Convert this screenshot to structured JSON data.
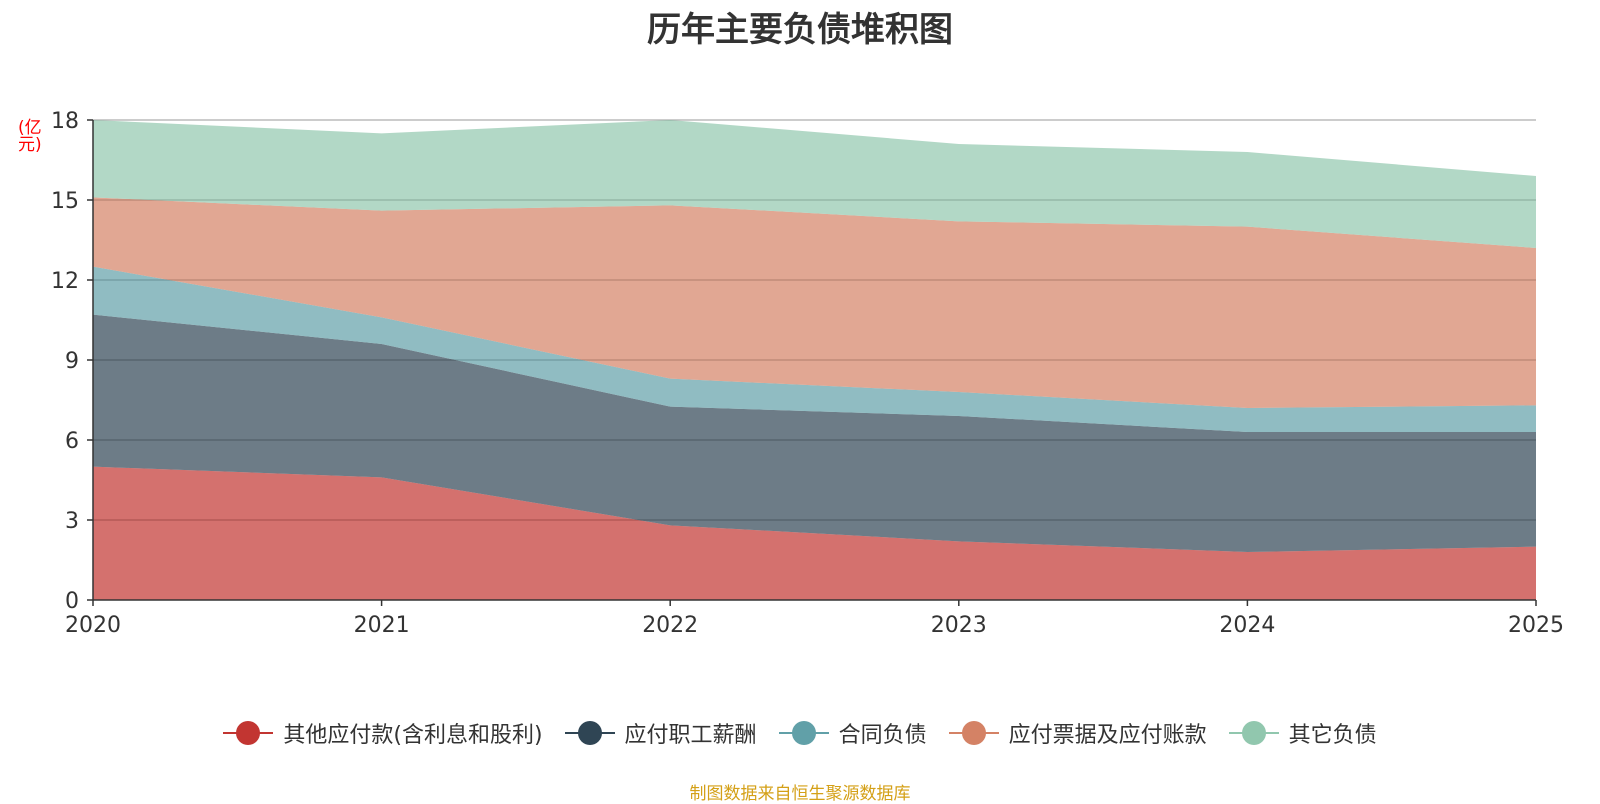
{
  "chart_data": {
    "type": "area",
    "stacked": true,
    "title": "历年主要负债堆积图",
    "ylabel": "(亿元)",
    "xlabel": "",
    "x": [
      "2020",
      "2021",
      "2022",
      "2023",
      "2024",
      "2025"
    ],
    "ylim": [
      0,
      18
    ],
    "yticks": [
      0,
      3,
      6,
      9,
      12,
      15,
      18
    ],
    "grid": true,
    "legend_position": "bottom",
    "series": [
      {
        "name": "其他应付款(含利息和股利)",
        "color": "#c23531",
        "values": [
          5.0,
          4.6,
          2.8,
          2.2,
          1.8,
          2.0
        ]
      },
      {
        "name": "应付职工薪酬",
        "color": "#2f4554",
        "values": [
          5.7,
          5.0,
          4.45,
          4.7,
          4.5,
          4.3
        ]
      },
      {
        "name": "合同负债",
        "color": "#61a0a8",
        "values": [
          1.8,
          1.0,
          1.05,
          0.9,
          0.9,
          1.0
        ]
      },
      {
        "name": "应付票据及应付账款",
        "color": "#d48265",
        "values": [
          2.6,
          4.0,
          6.5,
          6.4,
          6.8,
          5.9
        ]
      },
      {
        "name": "其它负债",
        "color": "#91c7ae",
        "values": [
          2.9,
          2.9,
          3.2,
          2.9,
          2.8,
          2.7
        ]
      }
    ]
  },
  "source_text": "制图数据来自恒生聚源数据库"
}
